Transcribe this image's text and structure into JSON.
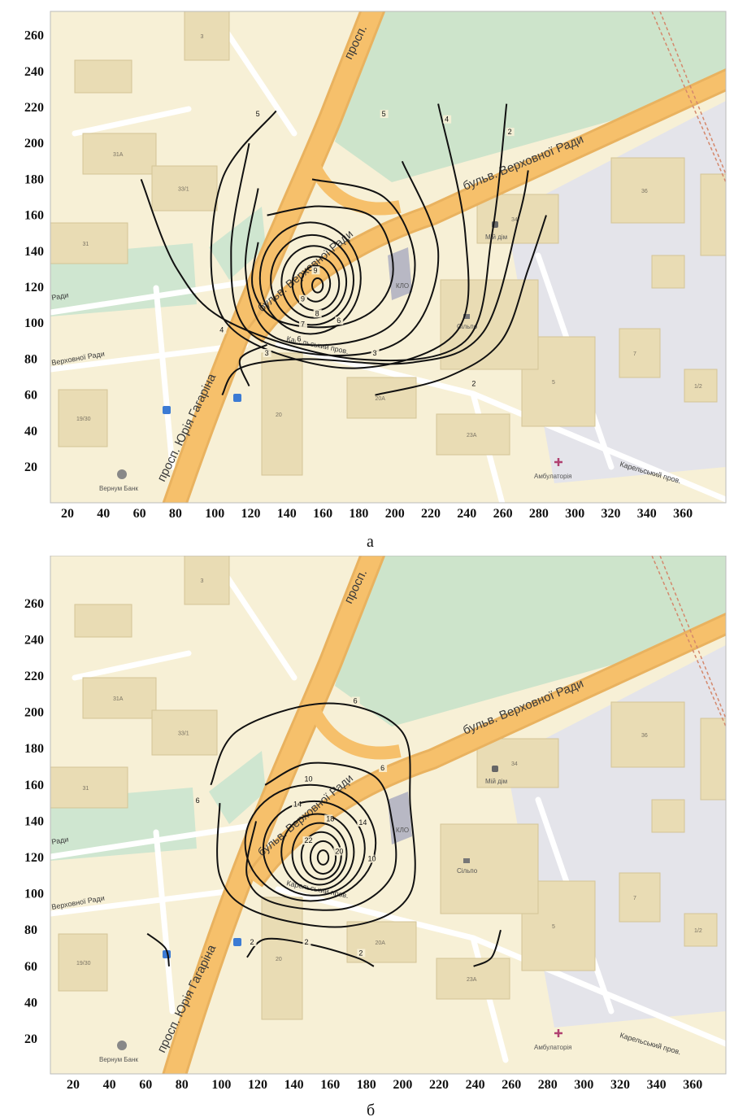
{
  "x_ticks": [
    "20",
    "40",
    "60",
    "80",
    "100",
    "120",
    "140",
    "160",
    "180",
    "200",
    "220",
    "240",
    "260",
    "280",
    "300",
    "320",
    "340",
    "360"
  ],
  "y_ticks": [
    "20",
    "40",
    "60",
    "80",
    "100",
    "120",
    "140",
    "160",
    "180",
    "200",
    "220",
    "240",
    "260"
  ],
  "panels": [
    {
      "letter": "а",
      "contour_labels": [
        "9",
        "9",
        "8",
        "7",
        "6",
        "6",
        "5",
        "5",
        "4",
        "4",
        "3",
        "3",
        "2",
        "2"
      ]
    },
    {
      "letter": "б",
      "contour_labels": [
        "22",
        "20",
        "18",
        "14",
        "14",
        "10",
        "10",
        "6",
        "6",
        "6",
        "2",
        "2",
        "2"
      ]
    }
  ],
  "map": {
    "streets": {
      "gagarin": "просп. Юрія Гагаріна",
      "prosp": "просп.",
      "boulevard": "бульв. Верховної Ради",
      "karelskyi": "Карельський пров.",
      "karelskyi_right": "Карельський пров.",
      "verkhovnoi_left": "Верховної Ради",
      "radi_left": "Ради"
    },
    "pois": {
      "bank": "Вернум Банк",
      "silpo": "Сільпо",
      "ambulatory": "Амбулаторія",
      "miydim": "Мій дім",
      "klo": "КЛО"
    },
    "buildings": [
      "31A",
      "33/1",
      "31",
      "3",
      "19/30",
      "20",
      "20A",
      "23A",
      "36",
      "34",
      "7",
      "5",
      "1/2"
    ]
  }
}
